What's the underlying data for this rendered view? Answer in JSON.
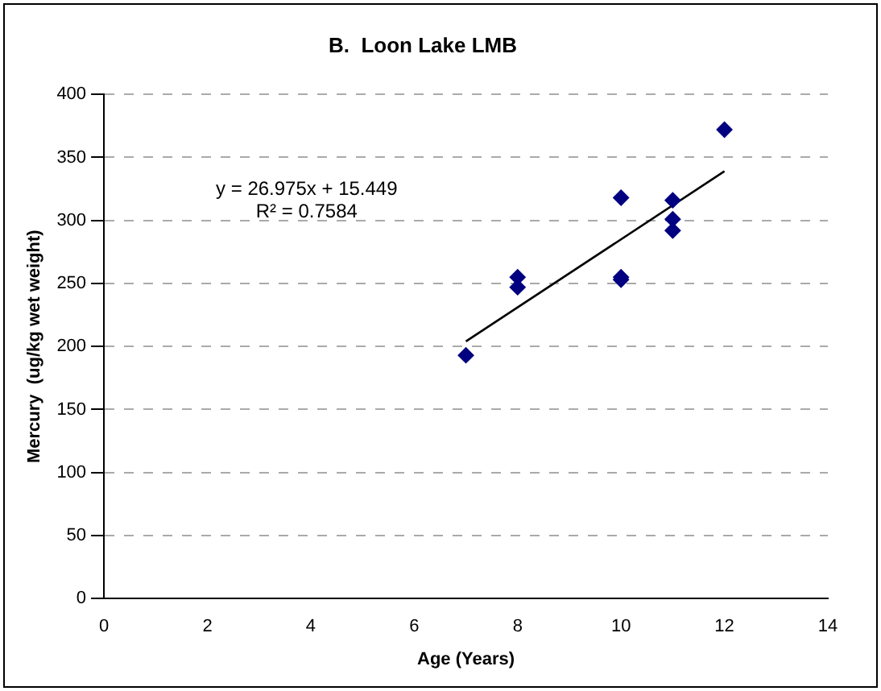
{
  "chart_data": {
    "type": "scatter",
    "title": "B.  Loon Lake LMB",
    "xlabel": "Age (Years)",
    "ylabel": "Mercury  (ug/kg wet weight)",
    "xlim": [
      0,
      14
    ],
    "xticks": [
      0,
      2,
      4,
      6,
      8,
      10,
      12,
      14
    ],
    "ylim": [
      0,
      400
    ],
    "yticks": [
      0,
      50,
      100,
      150,
      200,
      250,
      300,
      350,
      400
    ],
    "grid": "y",
    "legend": false,
    "series": [
      {
        "color": "#000080",
        "marker": "diamond",
        "x": [
          7,
          8,
          8,
          10,
          10,
          10,
          11,
          11,
          11,
          12
        ],
        "values": [
          193,
          255,
          247,
          318,
          255,
          253,
          316,
          301,
          292,
          372
        ]
      },
      {
        "type": "line",
        "color": "#000000",
        "marker": "none",
        "x": [
          7,
          12
        ],
        "values": [
          204,
          339
        ]
      }
    ],
    "annotations": [
      "y = 26.975x + 15.449",
      "R² = 0.7584"
    ]
  }
}
